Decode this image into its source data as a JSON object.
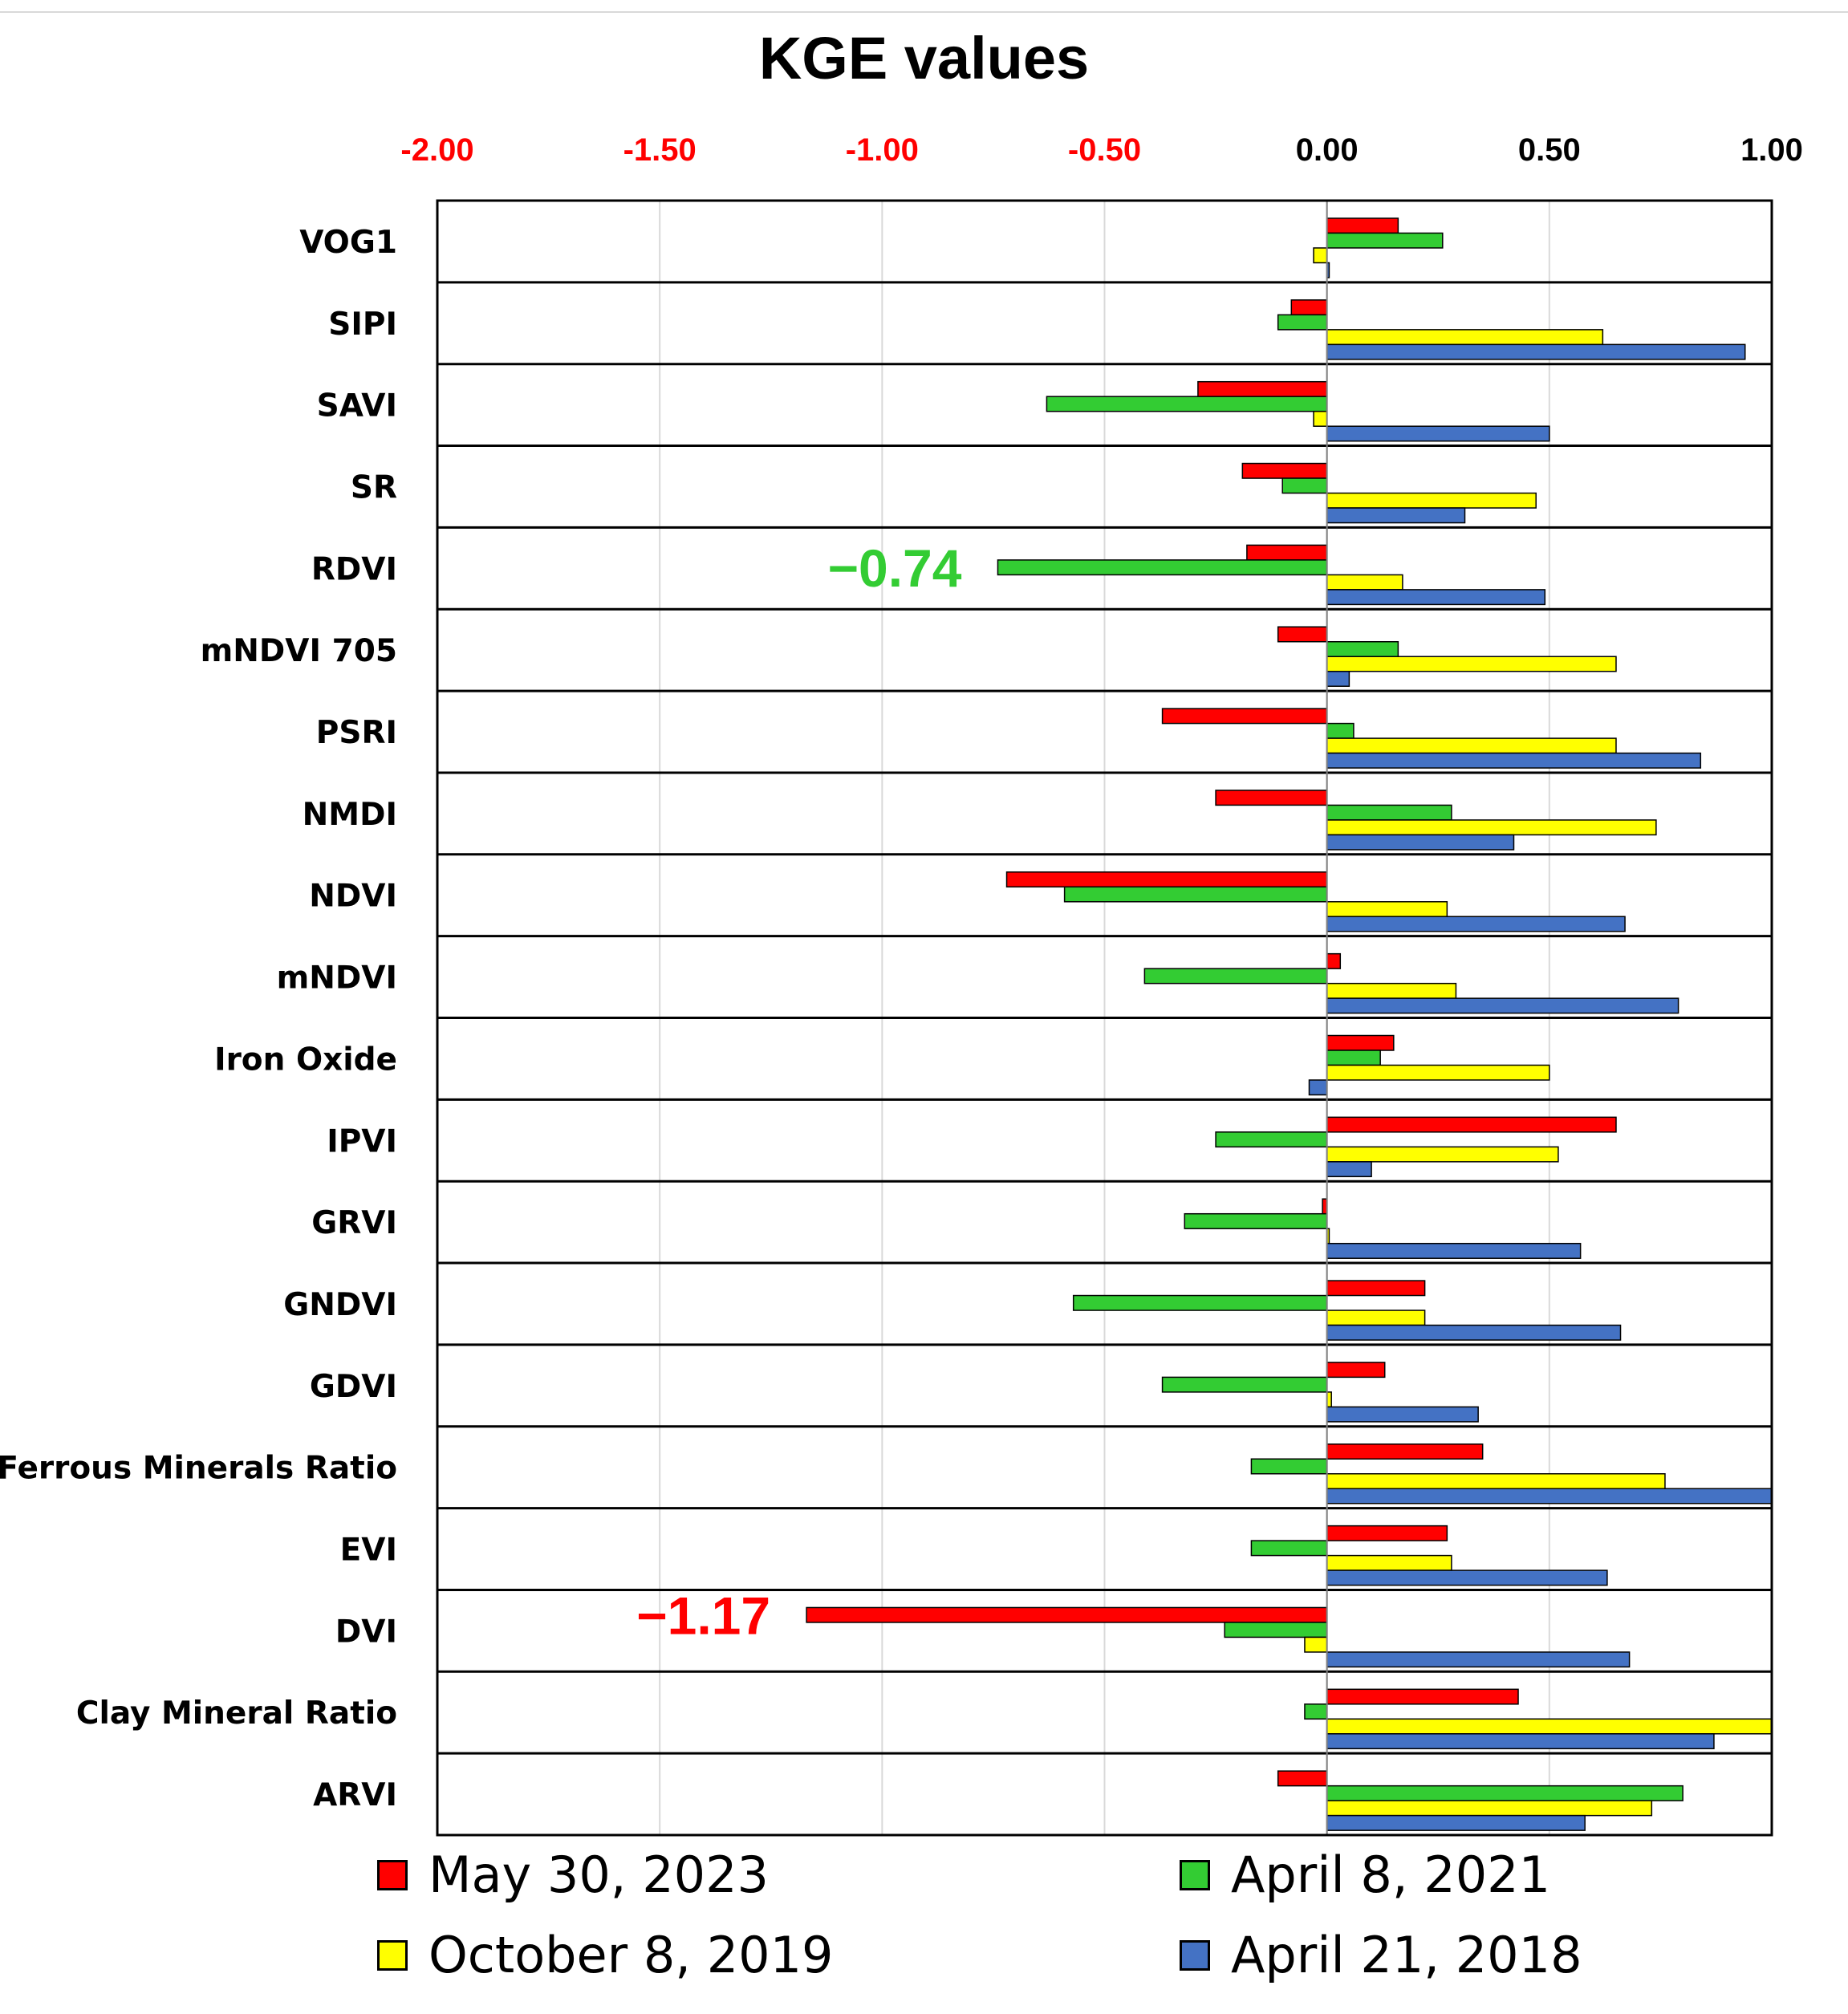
{
  "chart_data": {
    "type": "bar",
    "orientation": "horizontal",
    "title": "KGE values",
    "xlim": [
      -2.0,
      1.0
    ],
    "x_ticks": [
      "-2.00",
      "-1.50",
      "-1.00",
      "-0.50",
      "0.00",
      "0.50",
      "1.00"
    ],
    "x_tick_values": [
      -2.0,
      -1.5,
      -1.0,
      -0.5,
      0.0,
      0.5,
      1.0
    ],
    "negative_tick_color": "#ff0000",
    "categories": [
      "VOG1",
      "SIPI",
      "SAVI",
      "SR",
      "RDVI",
      "mNDVI 705",
      "PSRI",
      "NMDI",
      "NDVI",
      "mNDVI",
      "Iron Oxide",
      "IPVI",
      "GRVI",
      "GNDVI",
      "GDVI",
      "Ferrous Minerals Ratio",
      "EVI",
      "DVI",
      "Clay Mineral Ratio",
      "ARVI"
    ],
    "series": [
      {
        "name": "May 30, 2023",
        "color": "#ff0000",
        "values": [
          0.16,
          -0.08,
          -0.29,
          -0.19,
          -0.18,
          -0.11,
          -0.37,
          -0.25,
          -0.72,
          0.03,
          0.15,
          0.65,
          -0.01,
          0.22,
          0.13,
          0.35,
          0.27,
          -1.17,
          0.43,
          -0.11
        ]
      },
      {
        "name": "April 8, 2021",
        "color": "#33cc33",
        "values": [
          0.26,
          -0.11,
          -0.63,
          -0.1,
          -0.74,
          0.16,
          0.06,
          0.28,
          -0.59,
          -0.41,
          0.12,
          -0.25,
          -0.32,
          -0.57,
          -0.37,
          -0.17,
          -0.17,
          -0.23,
          -0.05,
          0.8
        ]
      },
      {
        "name": "October 8, 2019",
        "color": "#ffff00",
        "values": [
          -0.03,
          0.62,
          -0.03,
          0.47,
          0.17,
          0.65,
          0.65,
          0.74,
          0.27,
          0.29,
          0.5,
          0.52,
          0.005,
          0.22,
          0.01,
          0.76,
          0.28,
          -0.05,
          1.0,
          0.73
        ]
      },
      {
        "name": "April 21, 2018",
        "color": "#4472c4",
        "values": [
          0.005,
          0.94,
          0.5,
          0.31,
          0.49,
          0.05,
          0.84,
          0.42,
          0.67,
          0.79,
          -0.04,
          0.1,
          0.57,
          0.66,
          0.34,
          1.0,
          0.63,
          0.68,
          0.87,
          0.58
        ]
      }
    ],
    "annotations": [
      {
        "text": "−0.74",
        "category": "RDVI",
        "series": "April 8, 2021",
        "color": "#33cc33"
      },
      {
        "text": "−1.17",
        "category": "DVI",
        "series": "May 30, 2023",
        "color": "#ff0000"
      }
    ],
    "legend": "bottom",
    "grid": true
  }
}
